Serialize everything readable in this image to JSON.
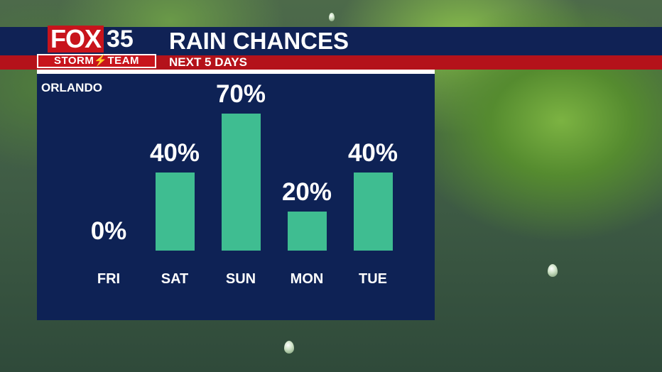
{
  "logo": {
    "brand": "FOX",
    "channel": "35",
    "team": "STORM⚡TEAM"
  },
  "header": {
    "title": "RAIN CHANCES",
    "subtitle": "NEXT 5 DAYS"
  },
  "panel": {
    "city": "ORLANDO"
  },
  "colors": {
    "bar": "#3fbd91",
    "panel": "#0e2255",
    "accent_red": "#c8141c"
  },
  "chart_data": {
    "type": "bar",
    "categories": [
      "FRI",
      "SAT",
      "SUN",
      "MON",
      "TUE"
    ],
    "values": [
      0,
      40,
      70,
      20,
      40
    ],
    "value_labels": [
      "0%",
      "40%",
      "70%",
      "20%",
      "40%"
    ],
    "ylim": [
      0,
      100
    ],
    "grid": false
  }
}
